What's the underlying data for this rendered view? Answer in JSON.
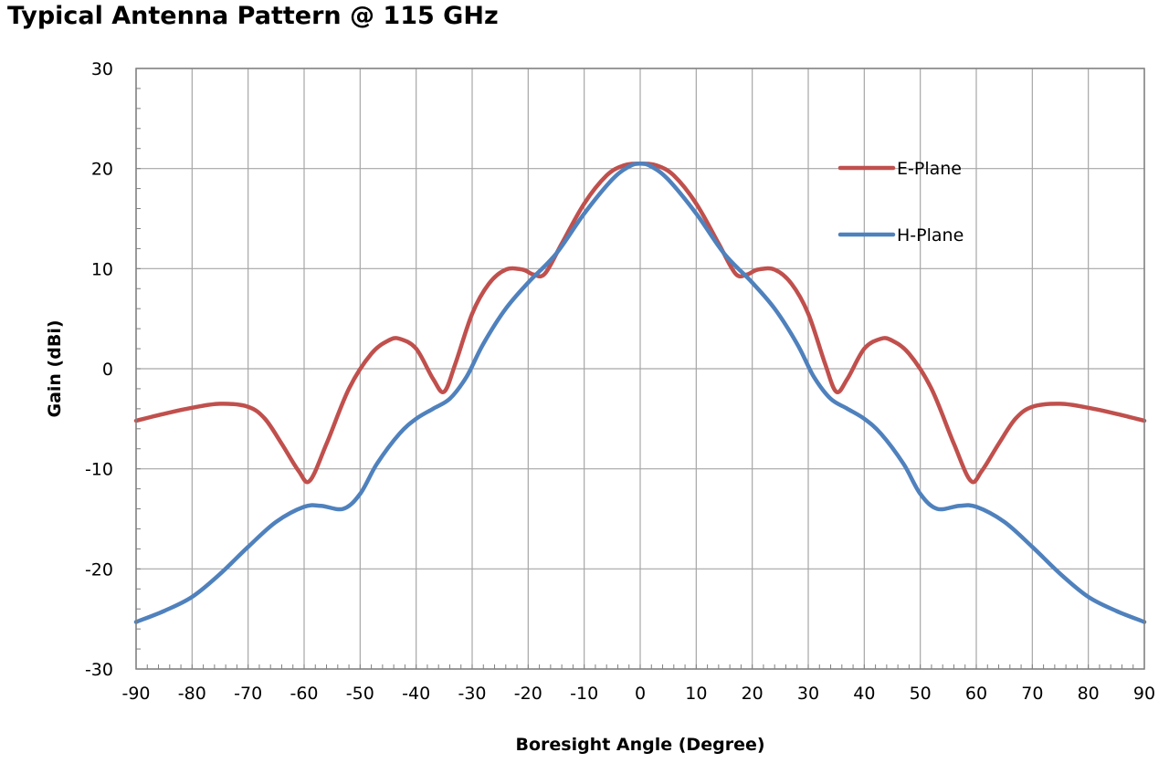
{
  "chart_data": {
    "type": "line",
    "title": "Typical Antenna Pattern @ 115 GHz",
    "xlabel": "Boresight Angle (Degree)",
    "ylabel": "Gain (dBi)",
    "xlim": [
      -90,
      90
    ],
    "ylim": [
      -30,
      30
    ],
    "x_ticks": [
      "-90",
      "-80",
      "-70",
      "-60",
      "-50",
      "-40",
      "-30",
      "-20",
      "-10",
      "0",
      "10",
      "20",
      "30",
      "40",
      "50",
      "60",
      "70",
      "80",
      "90"
    ],
    "y_ticks": [
      "30",
      "20",
      "10",
      "0",
      "-10",
      "-20",
      "-30"
    ],
    "grid": true,
    "legend_position": "upper-right",
    "series": [
      {
        "name": "E-Plane",
        "color": "#c0504d",
        "points": [
          [
            -90,
            -5.2
          ],
          [
            -85,
            -4.5
          ],
          [
            -80,
            -3.9
          ],
          [
            -75,
            -3.5
          ],
          [
            -70,
            -3.8
          ],
          [
            -67,
            -5.0
          ],
          [
            -64,
            -7.5
          ],
          [
            -61,
            -10.2
          ],
          [
            -59,
            -11.2
          ],
          [
            -56,
            -7.5
          ],
          [
            -52,
            -2.0
          ],
          [
            -48,
            1.5
          ],
          [
            -45,
            2.8
          ],
          [
            -43,
            3.0
          ],
          [
            -40,
            2.0
          ],
          [
            -37,
            -1.0
          ],
          [
            -35,
            -2.3
          ],
          [
            -33,
            0.5
          ],
          [
            -30,
            5.5
          ],
          [
            -27,
            8.5
          ],
          [
            -24,
            9.9
          ],
          [
            -21,
            9.9
          ],
          [
            -19,
            9.4
          ],
          [
            -17,
            9.5
          ],
          [
            -14,
            12.5
          ],
          [
            -10,
            16.5
          ],
          [
            -6,
            19.3
          ],
          [
            -3,
            20.3
          ],
          [
            0,
            20.5
          ],
          [
            3,
            20.3
          ],
          [
            6,
            19.3
          ],
          [
            10,
            16.5
          ],
          [
            14,
            12.5
          ],
          [
            17,
            9.5
          ],
          [
            19,
            9.4
          ],
          [
            21,
            9.9
          ],
          [
            24,
            9.9
          ],
          [
            27,
            8.5
          ],
          [
            30,
            5.5
          ],
          [
            33,
            0.5
          ],
          [
            35,
            -2.3
          ],
          [
            37,
            -1.0
          ],
          [
            40,
            2.0
          ],
          [
            43,
            3.0
          ],
          [
            45,
            2.8
          ],
          [
            48,
            1.5
          ],
          [
            52,
            -2.0
          ],
          [
            56,
            -7.5
          ],
          [
            59,
            -11.2
          ],
          [
            61,
            -10.2
          ],
          [
            64,
            -7.5
          ],
          [
            67,
            -5.0
          ],
          [
            70,
            -3.8
          ],
          [
            75,
            -3.5
          ],
          [
            80,
            -3.9
          ],
          [
            85,
            -4.5
          ],
          [
            90,
            -5.2
          ]
        ]
      },
      {
        "name": "H-Plane",
        "color": "#4f81bd",
        "points": [
          [
            -90,
            -25.3
          ],
          [
            -85,
            -24.2
          ],
          [
            -80,
            -22.8
          ],
          [
            -75,
            -20.5
          ],
          [
            -70,
            -17.8
          ],
          [
            -65,
            -15.3
          ],
          [
            -60,
            -13.8
          ],
          [
            -57,
            -13.7
          ],
          [
            -53,
            -14.0
          ],
          [
            -50,
            -12.5
          ],
          [
            -47,
            -9.5
          ],
          [
            -43,
            -6.5
          ],
          [
            -40,
            -5.0
          ],
          [
            -37,
            -4.0
          ],
          [
            -34,
            -3.0
          ],
          [
            -31,
            -0.8
          ],
          [
            -28,
            2.5
          ],
          [
            -24,
            6.0
          ],
          [
            -20,
            8.6
          ],
          [
            -15,
            11.5
          ],
          [
            -10,
            15.5
          ],
          [
            -5,
            18.9
          ],
          [
            -2,
            20.2
          ],
          [
            0,
            20.5
          ],
          [
            2,
            20.2
          ],
          [
            5,
            18.9
          ],
          [
            10,
            15.5
          ],
          [
            15,
            11.5
          ],
          [
            20,
            8.6
          ],
          [
            24,
            6.0
          ],
          [
            28,
            2.5
          ],
          [
            31,
            -0.8
          ],
          [
            34,
            -3.0
          ],
          [
            37,
            -4.0
          ],
          [
            40,
            -5.0
          ],
          [
            43,
            -6.5
          ],
          [
            47,
            -9.5
          ],
          [
            50,
            -12.5
          ],
          [
            53,
            -14.0
          ],
          [
            57,
            -13.7
          ],
          [
            60,
            -13.8
          ],
          [
            65,
            -15.3
          ],
          [
            70,
            -17.8
          ],
          [
            75,
            -20.5
          ],
          [
            80,
            -22.8
          ],
          [
            85,
            -24.2
          ],
          [
            90,
            -25.3
          ]
        ]
      }
    ]
  }
}
